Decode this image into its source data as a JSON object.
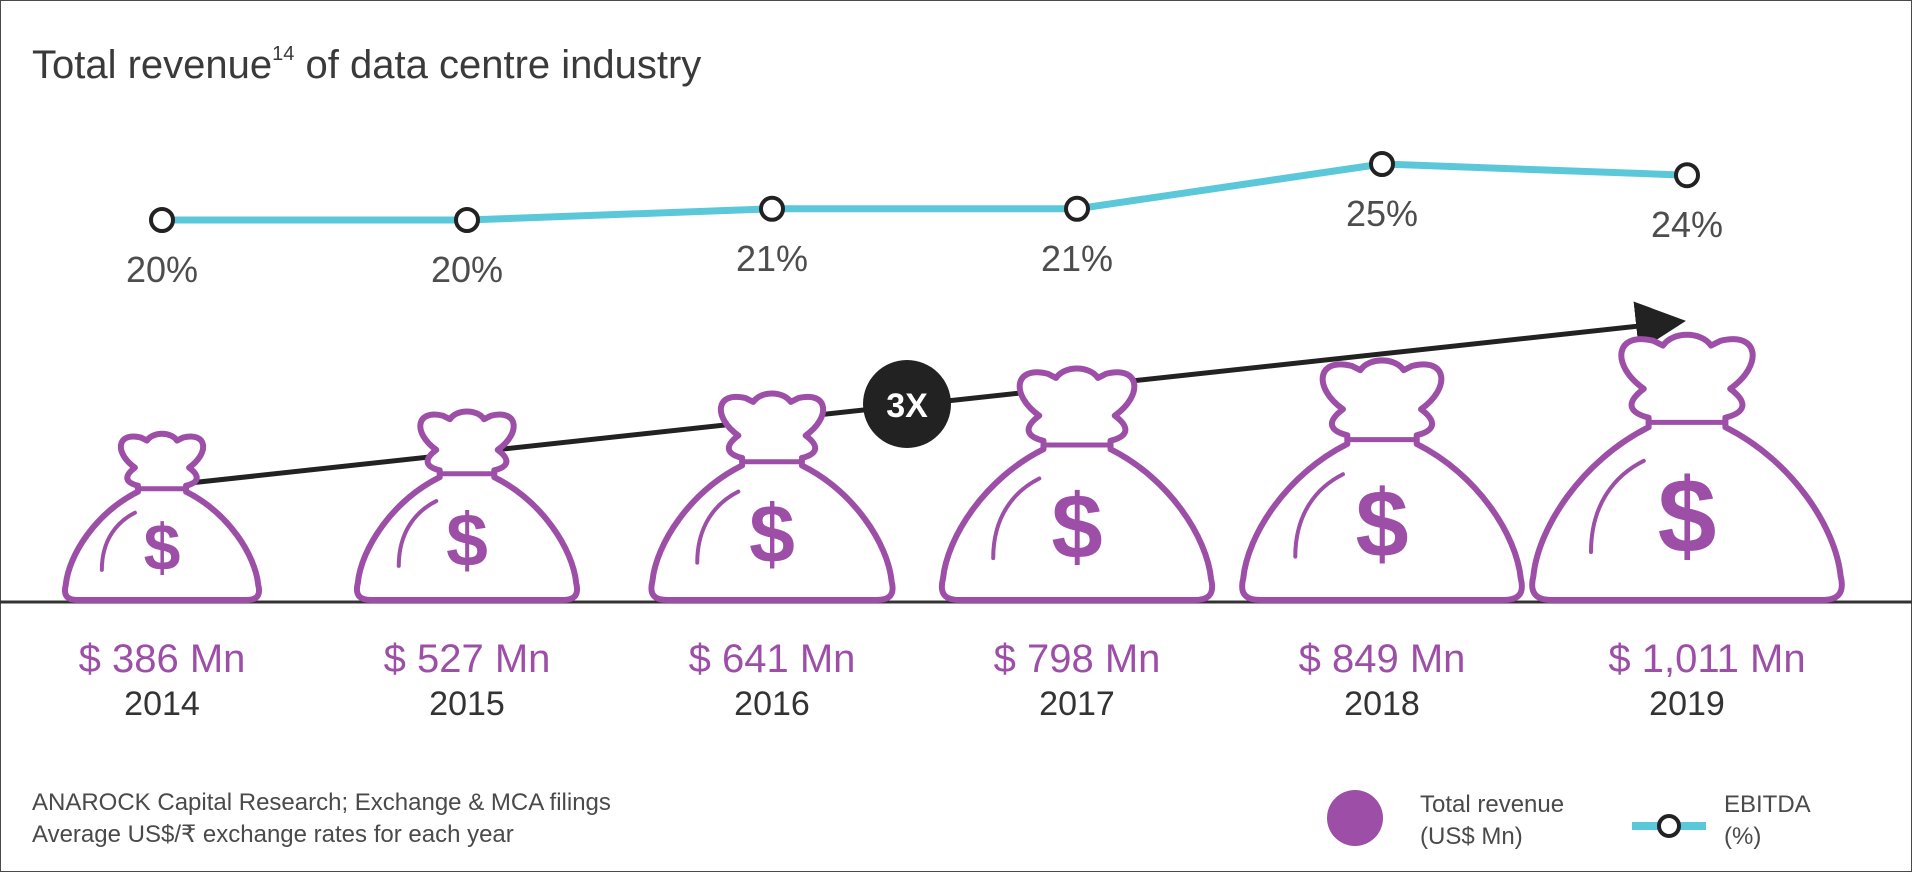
{
  "title": "Total revenue",
  "title_superscript": "14",
  "title_suffix": " of data centre industry",
  "colors": {
    "ebitda_line": "#5bc8da",
    "bag": "#9d4fa8",
    "text": "#3a3a3a",
    "badge": "#222222",
    "baseline": "#333333"
  },
  "growth_badge": "3X",
  "source_lines": [
    "ANAROCK Capital Research; Exchange & MCA filings",
    "Average US$/₹ exchange rates for each year"
  ],
  "legend": {
    "revenue_line1": "Total revenue",
    "revenue_line2": "(US$ Mn)",
    "ebitda_line1": "EBITDA",
    "ebitda_line2": "(%)"
  },
  "chart_data": {
    "type": "bar",
    "categories": [
      "2014",
      "2015",
      "2016",
      "2017",
      "2018",
      "2019"
    ],
    "series": [
      {
        "name": "Total revenue",
        "unit": "US$ Mn",
        "values": [
          386,
          527,
          641,
          798,
          849,
          1011
        ],
        "labels": [
          "$ 386 Mn",
          "$ 527 Mn",
          "$ 641 Mn",
          "$ 798 Mn",
          "$ 849 Mn",
          "$ 1,011 Mn"
        ]
      },
      {
        "name": "EBITDA",
        "unit": "%",
        "values": [
          20,
          20,
          21,
          21,
          25,
          24
        ],
        "labels": [
          "20%",
          "20%",
          "21%",
          "21%",
          "25%",
          "24%"
        ]
      }
    ],
    "legend_position": "bottom-right",
    "grid": false
  }
}
